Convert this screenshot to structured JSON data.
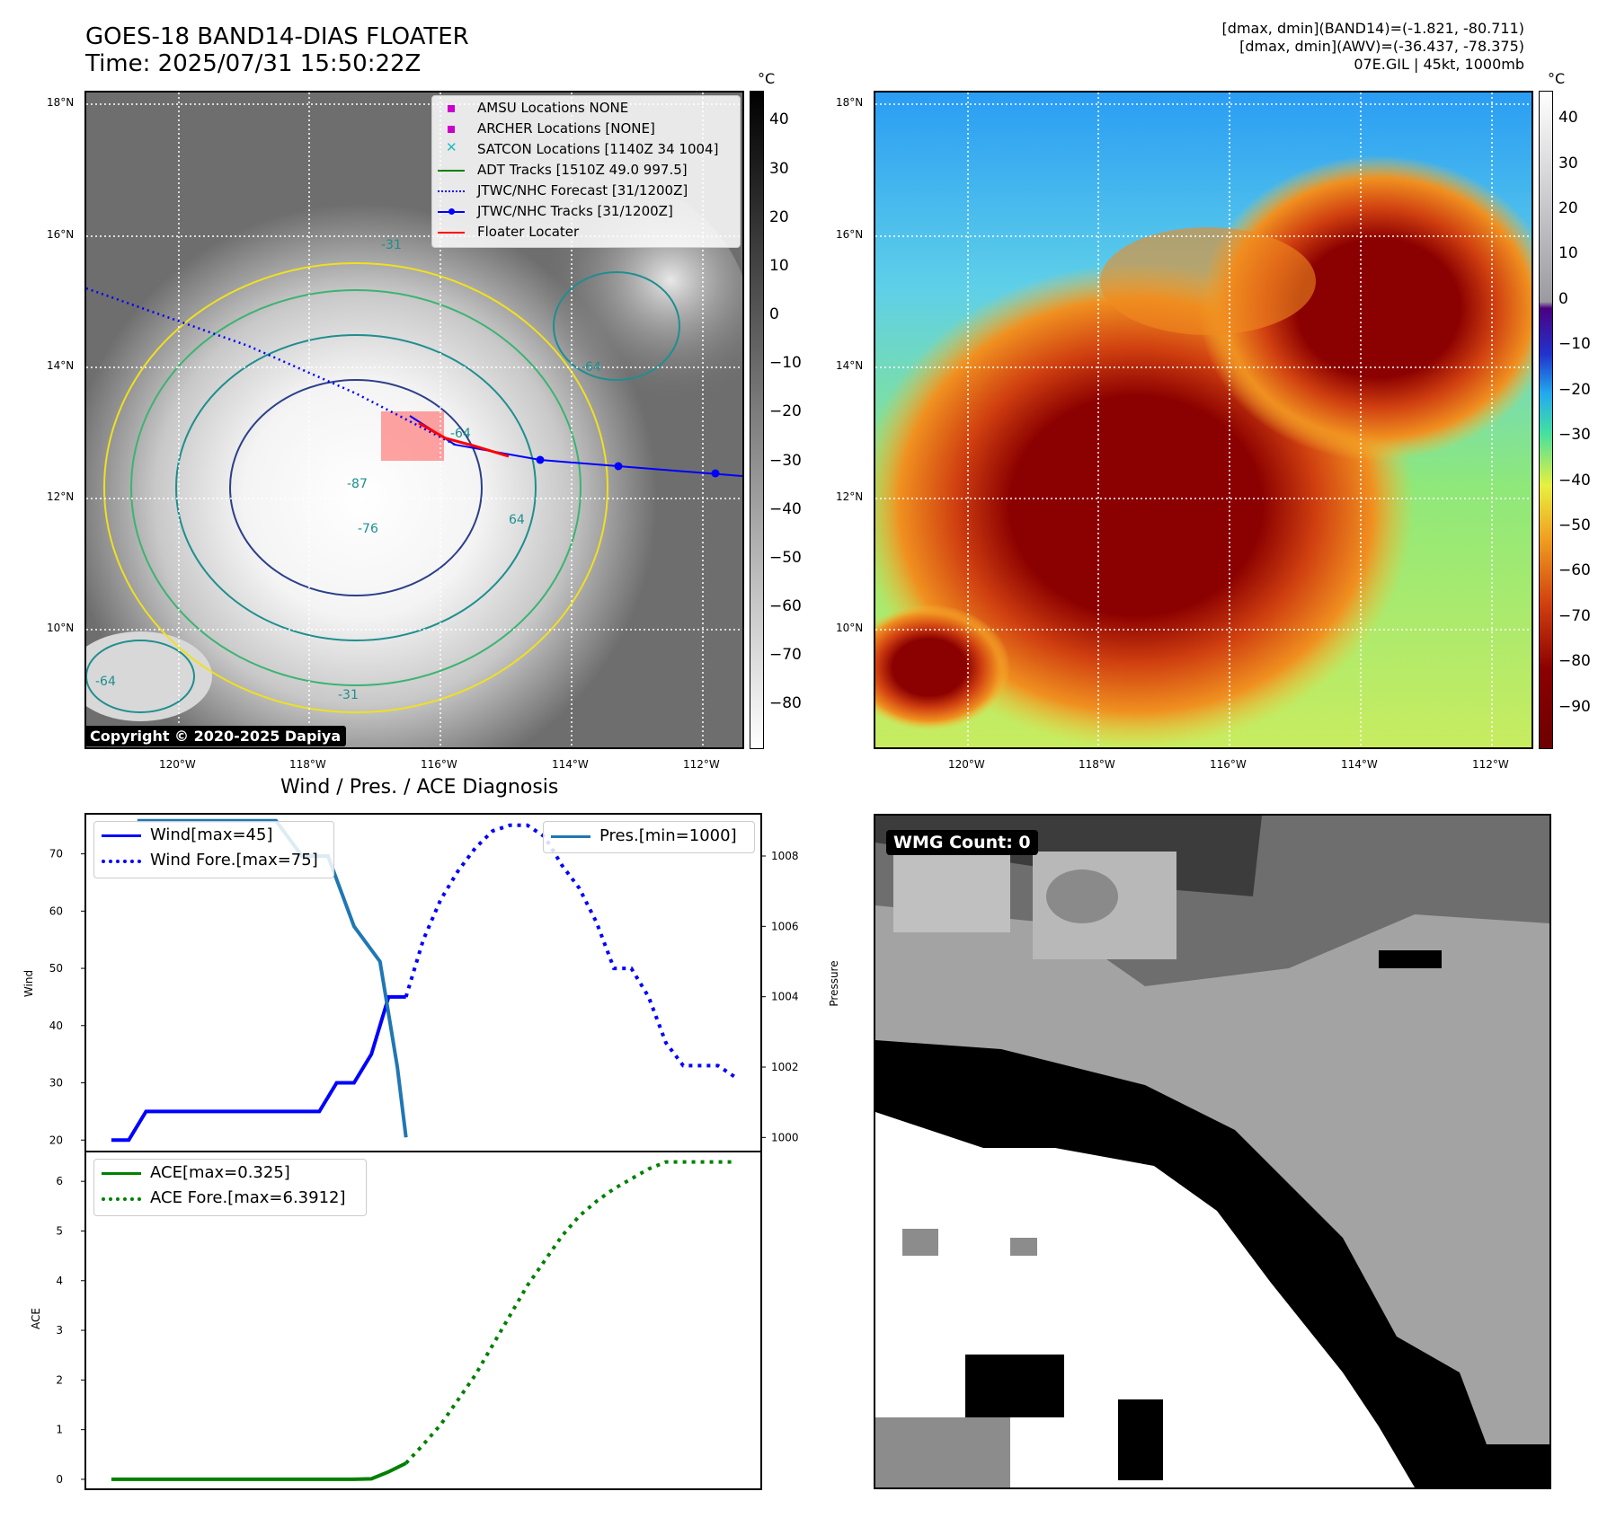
{
  "header": {
    "title_line1": "GOES-18 BAND14-DIAS FLOATER",
    "title_line2": "Time: 2025/07/31 15:50:22Z",
    "stats_line1": "[dmax, dmin](BAND14)=(-1.821, -80.711)",
    "stats_line2": "[dmax, dmin](AWV)=(-36.437, -78.375)",
    "stats_line3": "07E.GIL | 45kt, 1000mb"
  },
  "map_axes": {
    "lat_labels": [
      "18°N",
      "16°N",
      "14°N",
      "12°N",
      "10°N"
    ],
    "lon_labels": [
      "120°W",
      "118°W",
      "116°W",
      "114°W",
      "112°W"
    ]
  },
  "ir_panel": {
    "copyright": "Copyright © 2020-2025 Dapiya",
    "colorbar_unit": "°C",
    "colorbar_ticks": [
      "40",
      "30",
      "20",
      "10",
      "0",
      "−10",
      "−20",
      "−30",
      "−40",
      "−50",
      "−60",
      "−70",
      "−80"
    ],
    "contour_labels": [
      "-64",
      "-76",
      "-87",
      "64",
      "-31",
      "-64",
      "-64",
      "-31"
    ],
    "legend": [
      {
        "label": "AMSU Locations NONE",
        "color": "#cc00cc",
        "marker": "square"
      },
      {
        "label": "ARCHER Locations [NONE]",
        "color": "#cc00cc",
        "marker": "square"
      },
      {
        "label": "SATCON Locations [1140Z 34 1004]",
        "color": "#22bbbb",
        "marker": "x"
      },
      {
        "label": "ADT Tracks [1510Z 49.0 997.5]",
        "color": "#008000",
        "marker": "line"
      },
      {
        "label": "JTWC/NHC Forecast [31/1200Z]",
        "color": "#0000ff",
        "marker": "dotted"
      },
      {
        "label": "JTWC/NHC Tracks [31/1200Z]",
        "color": "#0000ff",
        "marker": "line-dot"
      },
      {
        "label": "Floater Locater",
        "color": "#ff0000",
        "marker": "line"
      }
    ]
  },
  "awv_panel": {
    "colorbar_unit": "°C",
    "colorbar_ticks": [
      "40",
      "30",
      "20",
      "10",
      "0",
      "−10",
      "−20",
      "−30",
      "−40",
      "−50",
      "−60",
      "−70",
      "−80",
      "−90"
    ]
  },
  "wmg_panel": {
    "label": "WMG Count: 0"
  },
  "chart_data": [
    {
      "type": "line",
      "title": "Wind / Pres. / ACE Diagnosis",
      "xlabel": "",
      "ylabel": "Wind",
      "ylabel_right": "Pressure",
      "ylim": [
        18,
        77
      ],
      "ylim_right": [
        999.6,
        1009.2
      ],
      "yticks": [
        "20",
        "30",
        "40",
        "50",
        "60",
        "70"
      ],
      "yticks_right": [
        "1000",
        "1002",
        "1004",
        "1006",
        "1008"
      ],
      "series": [
        {
          "name": "Wind[max=45]",
          "color": "#0000ff",
          "style": "solid",
          "x": [
            0,
            1,
            2,
            3,
            4,
            5,
            6,
            7,
            8,
            9,
            10,
            11,
            12,
            13,
            14,
            15,
            16,
            17
          ],
          "values": [
            20,
            20,
            25,
            25,
            25,
            25,
            25,
            25,
            25,
            25,
            25,
            25,
            25,
            30,
            30,
            35,
            45,
            45
          ]
        },
        {
          "name": "Wind Fore.[max=75]",
          "color": "#0000ff",
          "style": "dotted",
          "x": [
            17,
            18,
            19,
            20,
            21,
            22,
            23,
            24,
            25,
            26,
            27,
            28,
            29,
            30,
            31,
            32,
            33,
            34,
            35,
            36
          ],
          "values": [
            45,
            55,
            62,
            67,
            71,
            74,
            75,
            75,
            73,
            68,
            64,
            58,
            50,
            50,
            45,
            37,
            33,
            33,
            33,
            31
          ]
        },
        {
          "name": "Pres.[min=1000]",
          "color": "#1f77b4",
          "style": "solid",
          "axis": "right",
          "x": [
            1.5,
            9.5,
            11,
            12.5,
            14,
            15.5,
            16.5,
            17
          ],
          "values": [
            1009,
            1009,
            1008,
            1008,
            1006,
            1005,
            1002,
            1000
          ]
        }
      ]
    },
    {
      "type": "line",
      "xlabel": "",
      "ylabel": "ACE",
      "ylim": [
        -0.2,
        6.6
      ],
      "yticks": [
        "0",
        "1",
        "2",
        "3",
        "4",
        "5",
        "6"
      ],
      "series": [
        {
          "name": "ACE[max=0.325]",
          "color": "#008000",
          "style": "solid",
          "x": [
            0,
            14,
            15,
            16,
            17
          ],
          "values": [
            0,
            0,
            0.01,
            0.15,
            0.325
          ]
        },
        {
          "name": "ACE Fore.[max=6.3912]",
          "color": "#008000",
          "style": "dotted",
          "x": [
            17,
            18,
            19,
            20,
            21,
            22,
            23,
            24,
            25,
            26,
            27,
            28,
            29,
            30,
            31,
            32,
            33,
            34,
            35,
            36
          ],
          "values": [
            0.325,
            0.7,
            1.1,
            1.6,
            2.1,
            2.7,
            3.3,
            3.9,
            4.4,
            4.9,
            5.3,
            5.6,
            5.85,
            6.05,
            6.25,
            6.39,
            6.39,
            6.39,
            6.39,
            6.39
          ]
        }
      ]
    }
  ]
}
